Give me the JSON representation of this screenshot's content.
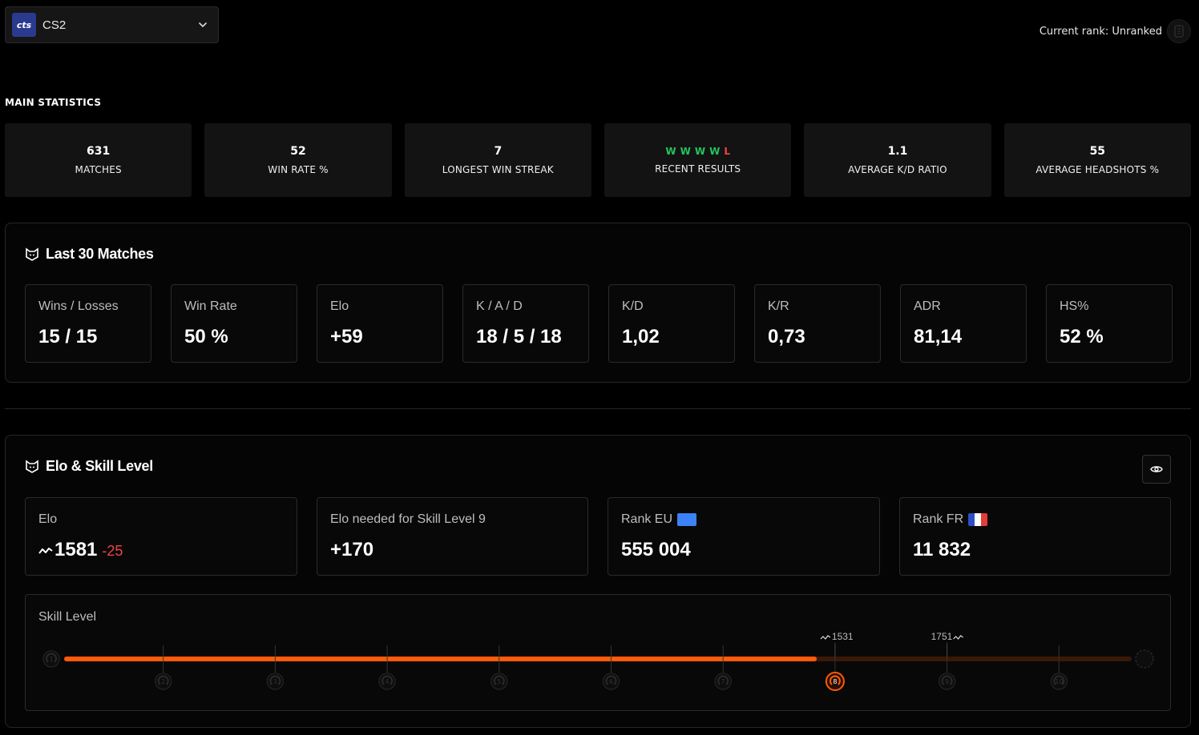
{
  "game_selector": {
    "logo_text": "cts",
    "name": "CS2"
  },
  "header": {
    "current_rank": "Current rank: Unranked"
  },
  "main_statistics": {
    "title": "MAIN STATISTICS",
    "cards": [
      {
        "value": "631",
        "label": "MATCHES"
      },
      {
        "value": "52",
        "label": "WIN RATE %"
      },
      {
        "value": "7",
        "label": "LONGEST WIN STREAK"
      },
      {
        "label": "RECENT RESULTS"
      },
      {
        "value": "1.1",
        "label": "AVERAGE K/D RATIO"
      },
      {
        "value": "55",
        "label": "AVERAGE HEADSHOTS %"
      }
    ],
    "recent_results": [
      "W",
      "W",
      "W",
      "W",
      "L"
    ]
  },
  "last_matches": {
    "title": "Last 30 Matches",
    "cards": [
      {
        "label": "Wins / Losses",
        "value": "15 / 15"
      },
      {
        "label": "Win Rate",
        "value": "50 %"
      },
      {
        "label": "Elo",
        "value": "+59"
      },
      {
        "label": "K / A / D",
        "value": "18 / 5 / 18"
      },
      {
        "label": "K/D",
        "value": "1,02"
      },
      {
        "label": "K/R",
        "value": "0,73"
      },
      {
        "label": "ADR",
        "value": "81,14"
      },
      {
        "label": "HS%",
        "value": "52 %"
      }
    ]
  },
  "elo_section": {
    "title": "Elo & Skill Level",
    "elo": {
      "label": "Elo",
      "value": "1581",
      "delta": "-25"
    },
    "elo_needed": {
      "label": "Elo needed for Skill Level 9",
      "value": "+170"
    },
    "rank_eu": {
      "label": "Rank EU",
      "value": "555 004"
    },
    "rank_fr": {
      "label": "Rank FR",
      "value": "11 832"
    },
    "skill": {
      "title": "Skill Level",
      "current_level": 8,
      "levels": [
        "1",
        "2",
        "3",
        "4",
        "5",
        "6",
        "7",
        "8",
        "9",
        "10"
      ],
      "marker_low": "1531",
      "marker_high": "1751",
      "progress_fraction": 0.705,
      "colors": {
        "accent": "#ff5a0a",
        "track": "#3a1808"
      }
    }
  }
}
